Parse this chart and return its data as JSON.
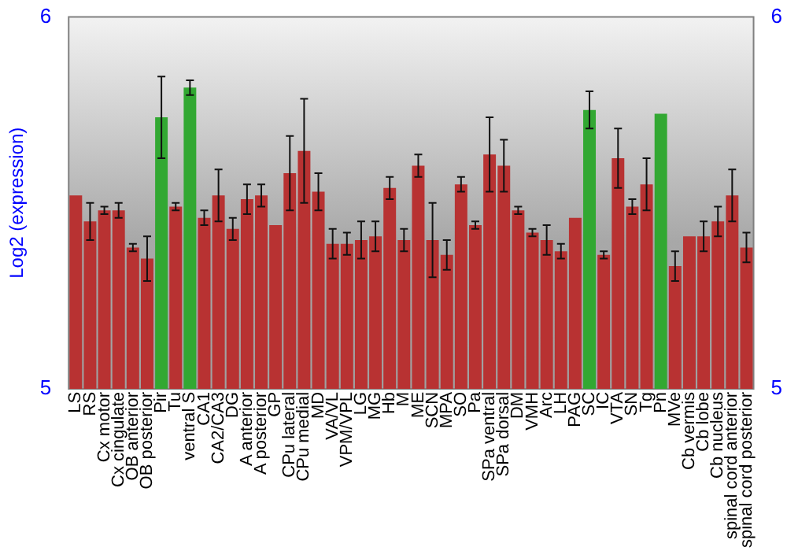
{
  "chart_data": {
    "type": "bar",
    "ylabel": "Log2 (expression)",
    "categories": [
      "LS",
      "RS",
      "Cx motor",
      "Cx cingulate",
      "OB anterior",
      "OB posterior",
      "Pir",
      "Tu",
      "ventral S",
      "CA1",
      "CA2/CA3",
      "DG",
      "A anterior",
      "A posterior",
      "GP",
      "CPu lateral",
      "CPu medial",
      "MD",
      "VA/VL",
      "VPM/VPL",
      "LG",
      "MG",
      "Hb",
      "M",
      "ME",
      "SCN",
      "MPA",
      "SO",
      "Pa",
      "SPa ventral",
      "SPa dorsal",
      "DM",
      "VMH",
      "Arc",
      "LH",
      "PAG",
      "SC",
      "IC",
      "VTA",
      "SN",
      "Tg",
      "Pn",
      "MVe",
      "Cb vermis",
      "Cb lobe",
      "Cb nucleus",
      "spinal cord anterior",
      "spinal cord posterior"
    ],
    "values": [
      5.52,
      5.45,
      5.48,
      5.48,
      5.38,
      5.35,
      5.73,
      5.49,
      5.81,
      5.46,
      5.52,
      5.43,
      5.51,
      5.52,
      5.44,
      5.58,
      5.64,
      5.53,
      5.39,
      5.39,
      5.4,
      5.41,
      5.54,
      5.4,
      5.6,
      5.4,
      5.36,
      5.55,
      5.44,
      5.63,
      5.6,
      5.48,
      5.42,
      5.4,
      5.37,
      5.46,
      5.75,
      5.36,
      5.62,
      5.49,
      5.55,
      5.74,
      5.33,
      5.41,
      5.41,
      5.45,
      5.52,
      5.38
    ],
    "errors": [
      null,
      0.05,
      0.01,
      0.02,
      0.01,
      0.06,
      0.11,
      0.01,
      0.02,
      0.02,
      0.07,
      0.03,
      0.04,
      0.03,
      null,
      0.1,
      0.14,
      0.05,
      0.04,
      0.03,
      0.05,
      0.04,
      0.03,
      0.03,
      0.03,
      0.1,
      0.04,
      0.02,
      0.01,
      0.1,
      0.07,
      0.01,
      0.01,
      0.04,
      0.02,
      null,
      0.05,
      0.01,
      0.08,
      0.02,
      0.07,
      null,
      0.04,
      null,
      0.04,
      0.04,
      0.07,
      0.04
    ],
    "colors": [
      "#b83232",
      "#b83232",
      "#b83232",
      "#b83232",
      "#b83232",
      "#b83232",
      "#32a832",
      "#b83232",
      "#32a832",
      "#b83232",
      "#b83232",
      "#b83232",
      "#b83232",
      "#b83232",
      "#b83232",
      "#b83232",
      "#b83232",
      "#b83232",
      "#b83232",
      "#b83232",
      "#b83232",
      "#b83232",
      "#b83232",
      "#b83232",
      "#b83232",
      "#b83232",
      "#b83232",
      "#b83232",
      "#b83232",
      "#b83232",
      "#b83232",
      "#b83232",
      "#b83232",
      "#b83232",
      "#b83232",
      "#b83232",
      "#32a832",
      "#b83232",
      "#b83232",
      "#b83232",
      "#b83232",
      "#32a832",
      "#b83232",
      "#b83232",
      "#b83232",
      "#b83232",
      "#b83232",
      "#b83232"
    ],
    "ylim": [
      5,
      6
    ],
    "yticks": [
      5,
      6
    ],
    "y2lim": [
      5,
      6
    ],
    "y2ticks": [
      5,
      6
    ],
    "grid": false,
    "legend": false
  }
}
